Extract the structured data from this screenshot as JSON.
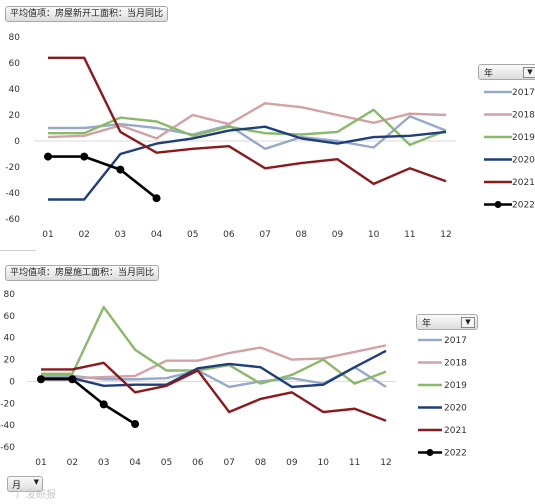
{
  "chart_data": [
    {
      "type": "line",
      "title": "平均值项：房屋新开工面积：当月同比",
      "categories": [
        "01",
        "02",
        "03",
        "04",
        "05",
        "06",
        "07",
        "08",
        "09",
        "10",
        "11",
        "12"
      ],
      "yticks": [
        80,
        60,
        40,
        20,
        0,
        -20,
        -40,
        -60
      ],
      "ylim": [
        -60,
        80
      ],
      "grid": false,
      "legend_position": "right",
      "legend_title": "年",
      "legend_filter_icon": "dropdown-arrow-icon",
      "series": [
        {
          "name": "2017",
          "color": "#95aac8",
          "values": [
            10,
            10,
            13,
            10,
            5,
            12,
            -6,
            3,
            0,
            -5,
            19,
            8
          ]
        },
        {
          "name": "2018",
          "color": "#d2a2a4",
          "values": [
            3,
            4,
            12,
            2,
            20,
            13,
            29,
            26,
            20,
            14,
            21,
            20
          ]
        },
        {
          "name": "2019",
          "color": "#8cb86a",
          "values": [
            6,
            6,
            18,
            15,
            4,
            11,
            6,
            5,
            7,
            24,
            -3,
            8
          ]
        },
        {
          "name": "2020",
          "color": "#1f3e7a",
          "values": [
            -45,
            -45,
            -10,
            -2,
            2,
            8,
            11,
            2,
            -2,
            3,
            4,
            7
          ]
        },
        {
          "name": "2021",
          "color": "#8b1a1e",
          "values": [
            64,
            64,
            7,
            -9,
            -6,
            -4,
            -21,
            -17,
            -14,
            -33,
            -21,
            -31
          ]
        },
        {
          "name": "2022",
          "color": "#000000",
          "marker": "circle",
          "values": [
            -12,
            -12,
            -22,
            -44,
            null,
            null,
            null,
            null,
            null,
            null,
            null,
            null
          ]
        }
      ]
    },
    {
      "type": "line",
      "title": "平均值项：房屋施工面积：当月同比",
      "categories": [
        "01",
        "02",
        "03",
        "04",
        "05",
        "06",
        "07",
        "08",
        "09",
        "10",
        "11",
        "12"
      ],
      "yticks": [
        80,
        60,
        40,
        20,
        0,
        -20,
        -40,
        -60
      ],
      "ylim": [
        -60,
        80
      ],
      "grid": false,
      "legend_position": "right",
      "legend_title": "年",
      "legend_filter_icon": "filter-dropdown-icon",
      "row_filter_label": "月",
      "series": [
        {
          "name": "2017",
          "color": "#95aac8",
          "values": [
            5,
            5,
            2,
            2,
            3,
            10,
            -5,
            0,
            3,
            -2,
            13,
            -5
          ]
        },
        {
          "name": "2018",
          "color": "#d2a2a4",
          "values": [
            3,
            3,
            4,
            5,
            19,
            19,
            26,
            31,
            20,
            21,
            27,
            33
          ]
        },
        {
          "name": "2019",
          "color": "#8cb86a",
          "values": [
            7,
            7,
            68,
            29,
            10,
            10,
            15,
            -2,
            6,
            20,
            -2,
            9
          ]
        },
        {
          "name": "2020",
          "color": "#1f3e7a",
          "values": [
            3,
            3,
            -4,
            -3,
            -3,
            12,
            16,
            13,
            -5,
            -3,
            13,
            28
          ]
        },
        {
          "name": "2021",
          "color": "#8b1a1e",
          "values": [
            11,
            11,
            17,
            -10,
            -4,
            10,
            -28,
            -16,
            -10,
            -28,
            -25,
            -36
          ]
        },
        {
          "name": "2022",
          "color": "#000000",
          "marker": "circle",
          "values": [
            2,
            2,
            -21,
            -39,
            null,
            null,
            null,
            null,
            null,
            null,
            null,
            null
          ]
        }
      ]
    }
  ],
  "watermark": "广发研报"
}
